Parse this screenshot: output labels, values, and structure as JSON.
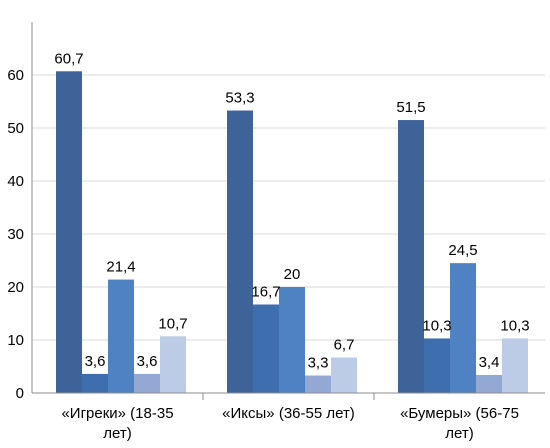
{
  "chart_data": {
    "type": "bar",
    "title": "",
    "xlabel": "",
    "ylabel": "",
    "ylim": [
      0,
      70
    ],
    "yticks": [
      0,
      10,
      20,
      30,
      40,
      50,
      60
    ],
    "grid": true,
    "legend": "none",
    "categories": [
      [
        "«Игреки» (18-35",
        "лет)"
      ],
      [
        "«Иксы» (36-55 лет)"
      ],
      [
        "«Бумеры» (56-75",
        "лет)"
      ]
    ],
    "series": [
      {
        "color": "#3D6398",
        "values": [
          60.7,
          53.3,
          51.5
        ],
        "labels": [
          "60,7",
          "53,3",
          "51,5"
        ]
      },
      {
        "color": "#3F6EAE",
        "values": [
          3.6,
          16.7,
          10.3
        ],
        "labels": [
          "3,6",
          "16,7",
          "10,3"
        ]
      },
      {
        "color": "#4F82C3",
        "values": [
          21.4,
          20,
          24.5
        ],
        "labels": [
          "21,4",
          "20",
          "24,5"
        ]
      },
      {
        "color": "#94A8D4",
        "values": [
          3.6,
          3.3,
          3.4
        ],
        "labels": [
          "3,6",
          "3,3",
          "3,4"
        ]
      },
      {
        "color": "#BCCBE6",
        "values": [
          10.7,
          6.7,
          10.3
        ],
        "labels": [
          "10,7",
          "6,7",
          "10,3"
        ]
      }
    ],
    "gridline_color": "#D9D9D9",
    "axis_color": "#8C8C8C"
  }
}
